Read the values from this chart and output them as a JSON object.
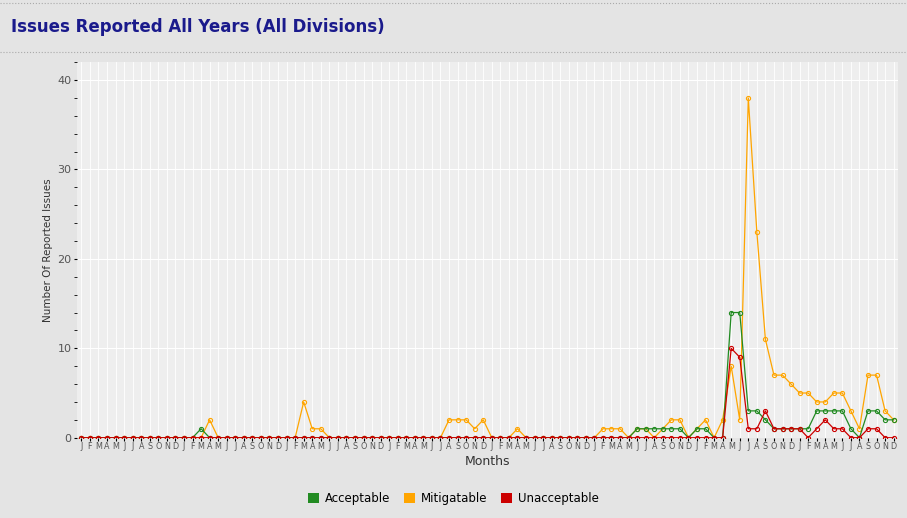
{
  "title": "Issues Reported All Years (All Divisions)",
  "xlabel": "Months",
  "ylabel": "Number Of Reported Issues",
  "ylim": [
    0,
    42
  ],
  "yticks": [
    0,
    10,
    20,
    30,
    40
  ],
  "background_color": "#e4e4e4",
  "plot_bg_color": "#eeeeee",
  "title_color": "#1a1a8c",
  "title_fontsize": 12,
  "axis_fontsize": 8,
  "legend_labels": [
    "Acceptable",
    "Mitigatable",
    "Unacceptable"
  ],
  "legend_colors": [
    "#228B22",
    "#FFA500",
    "#CC0000"
  ],
  "months_labels": [
    "J",
    "F",
    "M",
    "A",
    "M",
    "J",
    "J",
    "A",
    "S",
    "O",
    "N",
    "D"
  ],
  "num_years": 8,
  "acceptable": [
    0,
    0,
    0,
    0,
    0,
    0,
    0,
    0,
    0,
    0,
    0,
    0,
    0,
    0,
    1,
    0,
    0,
    0,
    0,
    0,
    0,
    0,
    0,
    0,
    0,
    0,
    0,
    0,
    0,
    0,
    0,
    0,
    0,
    0,
    0,
    0,
    0,
    0,
    0,
    0,
    0,
    0,
    0,
    0,
    0,
    0,
    0,
    0,
    0,
    0,
    0,
    0,
    0,
    0,
    0,
    0,
    0,
    0,
    0,
    0,
    0,
    0,
    0,
    0,
    0,
    1,
    1,
    1,
    1,
    1,
    1,
    0,
    1,
    1,
    0,
    0,
    14,
    14,
    3,
    3,
    2,
    1,
    1,
    1,
    1,
    1,
    3,
    3,
    3,
    3,
    1,
    0,
    3,
    3,
    2,
    2
  ],
  "mitigatable": [
    0,
    0,
    0,
    0,
    0,
    0,
    0,
    0,
    0,
    0,
    0,
    0,
    0,
    0,
    0,
    2,
    0,
    0,
    0,
    0,
    0,
    0,
    0,
    0,
    0,
    0,
    4,
    1,
    1,
    0,
    0,
    0,
    0,
    0,
    0,
    0,
    0,
    0,
    0,
    0,
    0,
    0,
    0,
    2,
    2,
    2,
    1,
    2,
    0,
    0,
    0,
    1,
    0,
    0,
    0,
    0,
    0,
    0,
    0,
    0,
    0,
    1,
    1,
    1,
    0,
    1,
    1,
    0,
    1,
    2,
    2,
    0,
    1,
    2,
    0,
    2,
    8,
    2,
    38,
    23,
    11,
    7,
    7,
    6,
    5,
    5,
    4,
    4,
    5,
    5,
    3,
    1,
    7,
    7,
    3,
    2
  ],
  "unacceptable": [
    0,
    0,
    0,
    0,
    0,
    0,
    0,
    0,
    0,
    0,
    0,
    0,
    0,
    0,
    0,
    0,
    0,
    0,
    0,
    0,
    0,
    0,
    0,
    0,
    0,
    0,
    0,
    0,
    0,
    0,
    0,
    0,
    0,
    0,
    0,
    0,
    0,
    0,
    0,
    0,
    0,
    0,
    0,
    0,
    0,
    0,
    0,
    0,
    0,
    0,
    0,
    0,
    0,
    0,
    0,
    0,
    0,
    0,
    0,
    0,
    0,
    0,
    0,
    0,
    0,
    0,
    0,
    0,
    0,
    0,
    0,
    0,
    0,
    0,
    0,
    0,
    10,
    9,
    1,
    1,
    3,
    1,
    1,
    1,
    1,
    0,
    1,
    2,
    1,
    1,
    0,
    0,
    1,
    1,
    0,
    0
  ]
}
